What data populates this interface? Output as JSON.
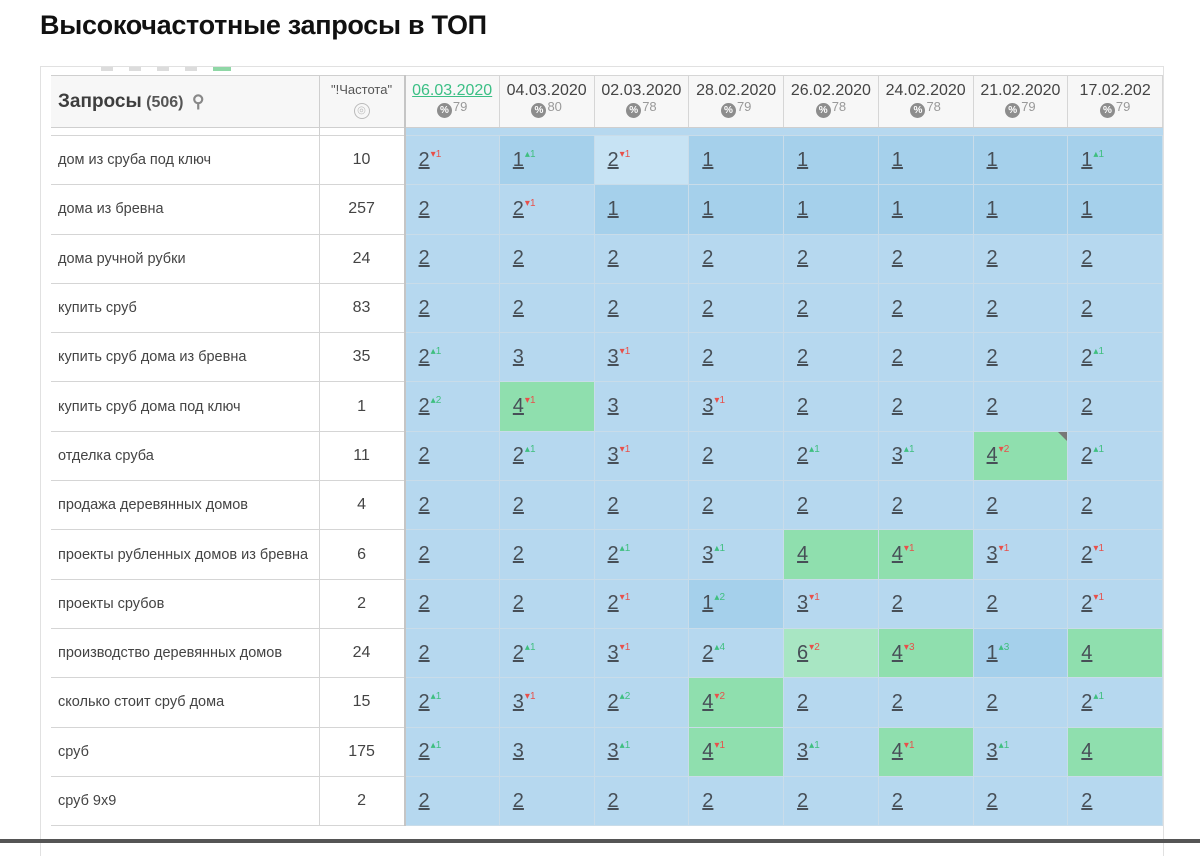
{
  "title": "Высокочастотные запросы в ТОП",
  "table": {
    "query_header": "Запросы",
    "query_count": "(506)",
    "freq_header": "\"!Частота\"",
    "dates": [
      {
        "date": "06.03.2020",
        "pct": "79",
        "active": true
      },
      {
        "date": "04.03.2020",
        "pct": "80",
        "active": false
      },
      {
        "date": "02.03.2020",
        "pct": "78",
        "active": false
      },
      {
        "date": "28.02.2020",
        "pct": "79",
        "active": false
      },
      {
        "date": "26.02.2020",
        "pct": "78",
        "active": false
      },
      {
        "date": "24.02.2020",
        "pct": "78",
        "active": false
      },
      {
        "date": "21.02.2020",
        "pct": "79",
        "active": false
      },
      {
        "date": "17.02.202",
        "pct": "79",
        "active": false
      }
    ],
    "rows": [
      {
        "query": "дом из сруба под ключ",
        "freq": "10",
        "cells": [
          {
            "v": "2",
            "d": "1",
            "dir": "down",
            "c": "light"
          },
          {
            "v": "1",
            "d": "1",
            "dir": "up",
            "c": "dark"
          },
          {
            "v": "2",
            "d": "1",
            "dir": "down",
            "c": "pale"
          },
          {
            "v": "1",
            "c": "dark"
          },
          {
            "v": "1",
            "c": "dark"
          },
          {
            "v": "1",
            "c": "dark"
          },
          {
            "v": "1",
            "c": "dark"
          },
          {
            "v": "1",
            "d": "1",
            "dir": "up",
            "c": "dark"
          }
        ]
      },
      {
        "query": "дома из бревна",
        "freq": "257",
        "cells": [
          {
            "v": "2",
            "c": "light"
          },
          {
            "v": "2",
            "d": "1",
            "dir": "down",
            "c": "light"
          },
          {
            "v": "1",
            "c": "dark"
          },
          {
            "v": "1",
            "c": "dark"
          },
          {
            "v": "1",
            "c": "dark"
          },
          {
            "v": "1",
            "c": "dark"
          },
          {
            "v": "1",
            "c": "dark"
          },
          {
            "v": "1",
            "c": "dark"
          }
        ]
      },
      {
        "query": "дома ручной рубки",
        "freq": "24",
        "cells": [
          {
            "v": "2",
            "c": "light"
          },
          {
            "v": "2",
            "c": "light"
          },
          {
            "v": "2",
            "c": "light"
          },
          {
            "v": "2",
            "c": "light"
          },
          {
            "v": "2",
            "c": "light"
          },
          {
            "v": "2",
            "c": "light"
          },
          {
            "v": "2",
            "c": "light"
          },
          {
            "v": "2",
            "c": "light"
          }
        ]
      },
      {
        "query": "купить сруб",
        "freq": "83",
        "cells": [
          {
            "v": "2",
            "c": "light"
          },
          {
            "v": "2",
            "c": "light"
          },
          {
            "v": "2",
            "c": "light"
          },
          {
            "v": "2",
            "c": "light"
          },
          {
            "v": "2",
            "c": "light"
          },
          {
            "v": "2",
            "c": "light"
          },
          {
            "v": "2",
            "c": "light"
          },
          {
            "v": "2",
            "c": "light"
          }
        ]
      },
      {
        "query": "купить сруб дома из бревна",
        "freq": "35",
        "cells": [
          {
            "v": "2",
            "d": "1",
            "dir": "up",
            "c": "light"
          },
          {
            "v": "3",
            "c": "light"
          },
          {
            "v": "3",
            "d": "1",
            "dir": "down",
            "c": "light"
          },
          {
            "v": "2",
            "c": "light"
          },
          {
            "v": "2",
            "c": "light"
          },
          {
            "v": "2",
            "c": "light"
          },
          {
            "v": "2",
            "c": "light"
          },
          {
            "v": "2",
            "d": "1",
            "dir": "up",
            "c": "light"
          }
        ]
      },
      {
        "query": "купить сруб дома под ключ",
        "freq": "1",
        "cells": [
          {
            "v": "2",
            "d": "2",
            "dir": "up",
            "c": "light"
          },
          {
            "v": "4",
            "d": "1",
            "dir": "down",
            "c": "green"
          },
          {
            "v": "3",
            "c": "light"
          },
          {
            "v": "3",
            "d": "1",
            "dir": "down",
            "c": "light"
          },
          {
            "v": "2",
            "c": "light"
          },
          {
            "v": "2",
            "c": "light"
          },
          {
            "v": "2",
            "c": "light"
          },
          {
            "v": "2",
            "c": "light"
          }
        ]
      },
      {
        "query": "отделка сруба",
        "freq": "11",
        "cells": [
          {
            "v": "2",
            "c": "light"
          },
          {
            "v": "2",
            "d": "1",
            "dir": "up",
            "c": "light"
          },
          {
            "v": "3",
            "d": "1",
            "dir": "down",
            "c": "light"
          },
          {
            "v": "2",
            "c": "light"
          },
          {
            "v": "2",
            "d": "1",
            "dir": "up",
            "c": "light"
          },
          {
            "v": "3",
            "d": "1",
            "dir": "up",
            "c": "light"
          },
          {
            "v": "4",
            "d": "2",
            "dir": "down",
            "c": "green",
            "corner": true
          },
          {
            "v": "2",
            "d": "1",
            "dir": "up",
            "c": "light"
          }
        ]
      },
      {
        "query": "продажа деревянных домов",
        "freq": "4",
        "cells": [
          {
            "v": "2",
            "c": "light"
          },
          {
            "v": "2",
            "c": "light"
          },
          {
            "v": "2",
            "c": "light"
          },
          {
            "v": "2",
            "c": "light"
          },
          {
            "v": "2",
            "c": "light"
          },
          {
            "v": "2",
            "c": "light"
          },
          {
            "v": "2",
            "c": "light"
          },
          {
            "v": "2",
            "c": "light"
          }
        ]
      },
      {
        "query": "проекты рубленных домов из бревна",
        "freq": "6",
        "cells": [
          {
            "v": "2",
            "c": "light"
          },
          {
            "v": "2",
            "c": "light"
          },
          {
            "v": "2",
            "d": "1",
            "dir": "up",
            "c": "light"
          },
          {
            "v": "3",
            "d": "1",
            "dir": "up",
            "c": "light"
          },
          {
            "v": "4",
            "c": "green"
          },
          {
            "v": "4",
            "d": "1",
            "dir": "down",
            "c": "green"
          },
          {
            "v": "3",
            "d": "1",
            "dir": "down",
            "c": "light"
          },
          {
            "v": "2",
            "d": "1",
            "dir": "down",
            "c": "light"
          }
        ]
      },
      {
        "query": "проекты срубов",
        "freq": "2",
        "cells": [
          {
            "v": "2",
            "c": "light"
          },
          {
            "v": "2",
            "c": "light"
          },
          {
            "v": "2",
            "d": "1",
            "dir": "down",
            "c": "light"
          },
          {
            "v": "1",
            "d": "2",
            "dir": "up",
            "c": "dark"
          },
          {
            "v": "3",
            "d": "1",
            "dir": "down",
            "c": "light"
          },
          {
            "v": "2",
            "c": "light"
          },
          {
            "v": "2",
            "c": "light"
          },
          {
            "v": "2",
            "d": "1",
            "dir": "down",
            "c": "light"
          }
        ]
      },
      {
        "query": "производство деревянных домов",
        "freq": "24",
        "cells": [
          {
            "v": "2",
            "c": "light"
          },
          {
            "v": "2",
            "d": "1",
            "dir": "up",
            "c": "light"
          },
          {
            "v": "3",
            "d": "1",
            "dir": "down",
            "c": "light"
          },
          {
            "v": "2",
            "d": "4",
            "dir": "up",
            "c": "light"
          },
          {
            "v": "6",
            "d": "2",
            "dir": "down",
            "c": "mint"
          },
          {
            "v": "4",
            "d": "3",
            "dir": "down",
            "c": "green"
          },
          {
            "v": "1",
            "d": "3",
            "dir": "up",
            "c": "dark"
          },
          {
            "v": "4",
            "c": "green"
          }
        ]
      },
      {
        "query": "сколько стоит сруб дома",
        "freq": "15",
        "cells": [
          {
            "v": "2",
            "d": "1",
            "dir": "up",
            "c": "light"
          },
          {
            "v": "3",
            "d": "1",
            "dir": "down",
            "c": "light"
          },
          {
            "v": "2",
            "d": "2",
            "dir": "up",
            "c": "light"
          },
          {
            "v": "4",
            "d": "2",
            "dir": "down",
            "c": "green"
          },
          {
            "v": "2",
            "c": "light"
          },
          {
            "v": "2",
            "c": "light"
          },
          {
            "v": "2",
            "c": "light"
          },
          {
            "v": "2",
            "d": "1",
            "dir": "up",
            "c": "light"
          }
        ]
      },
      {
        "query": "сруб",
        "freq": "175",
        "cells": [
          {
            "v": "2",
            "d": "1",
            "dir": "up",
            "c": "light"
          },
          {
            "v": "3",
            "c": "light"
          },
          {
            "v": "3",
            "d": "1",
            "dir": "up",
            "c": "light"
          },
          {
            "v": "4",
            "d": "1",
            "dir": "down",
            "c": "green"
          },
          {
            "v": "3",
            "d": "1",
            "dir": "up",
            "c": "light"
          },
          {
            "v": "4",
            "d": "1",
            "dir": "down",
            "c": "green"
          },
          {
            "v": "3",
            "d": "1",
            "dir": "up",
            "c": "light"
          },
          {
            "v": "4",
            "c": "green"
          }
        ]
      },
      {
        "query": "сруб 9х9",
        "freq": "2",
        "cells": [
          {
            "v": "2",
            "c": "light"
          },
          {
            "v": "2",
            "c": "light"
          },
          {
            "v": "2",
            "c": "light"
          },
          {
            "v": "2",
            "c": "light"
          },
          {
            "v": "2",
            "c": "light"
          },
          {
            "v": "2",
            "c": "light"
          },
          {
            "v": "2",
            "c": "light"
          },
          {
            "v": "2",
            "c": "light"
          }
        ]
      }
    ]
  }
}
